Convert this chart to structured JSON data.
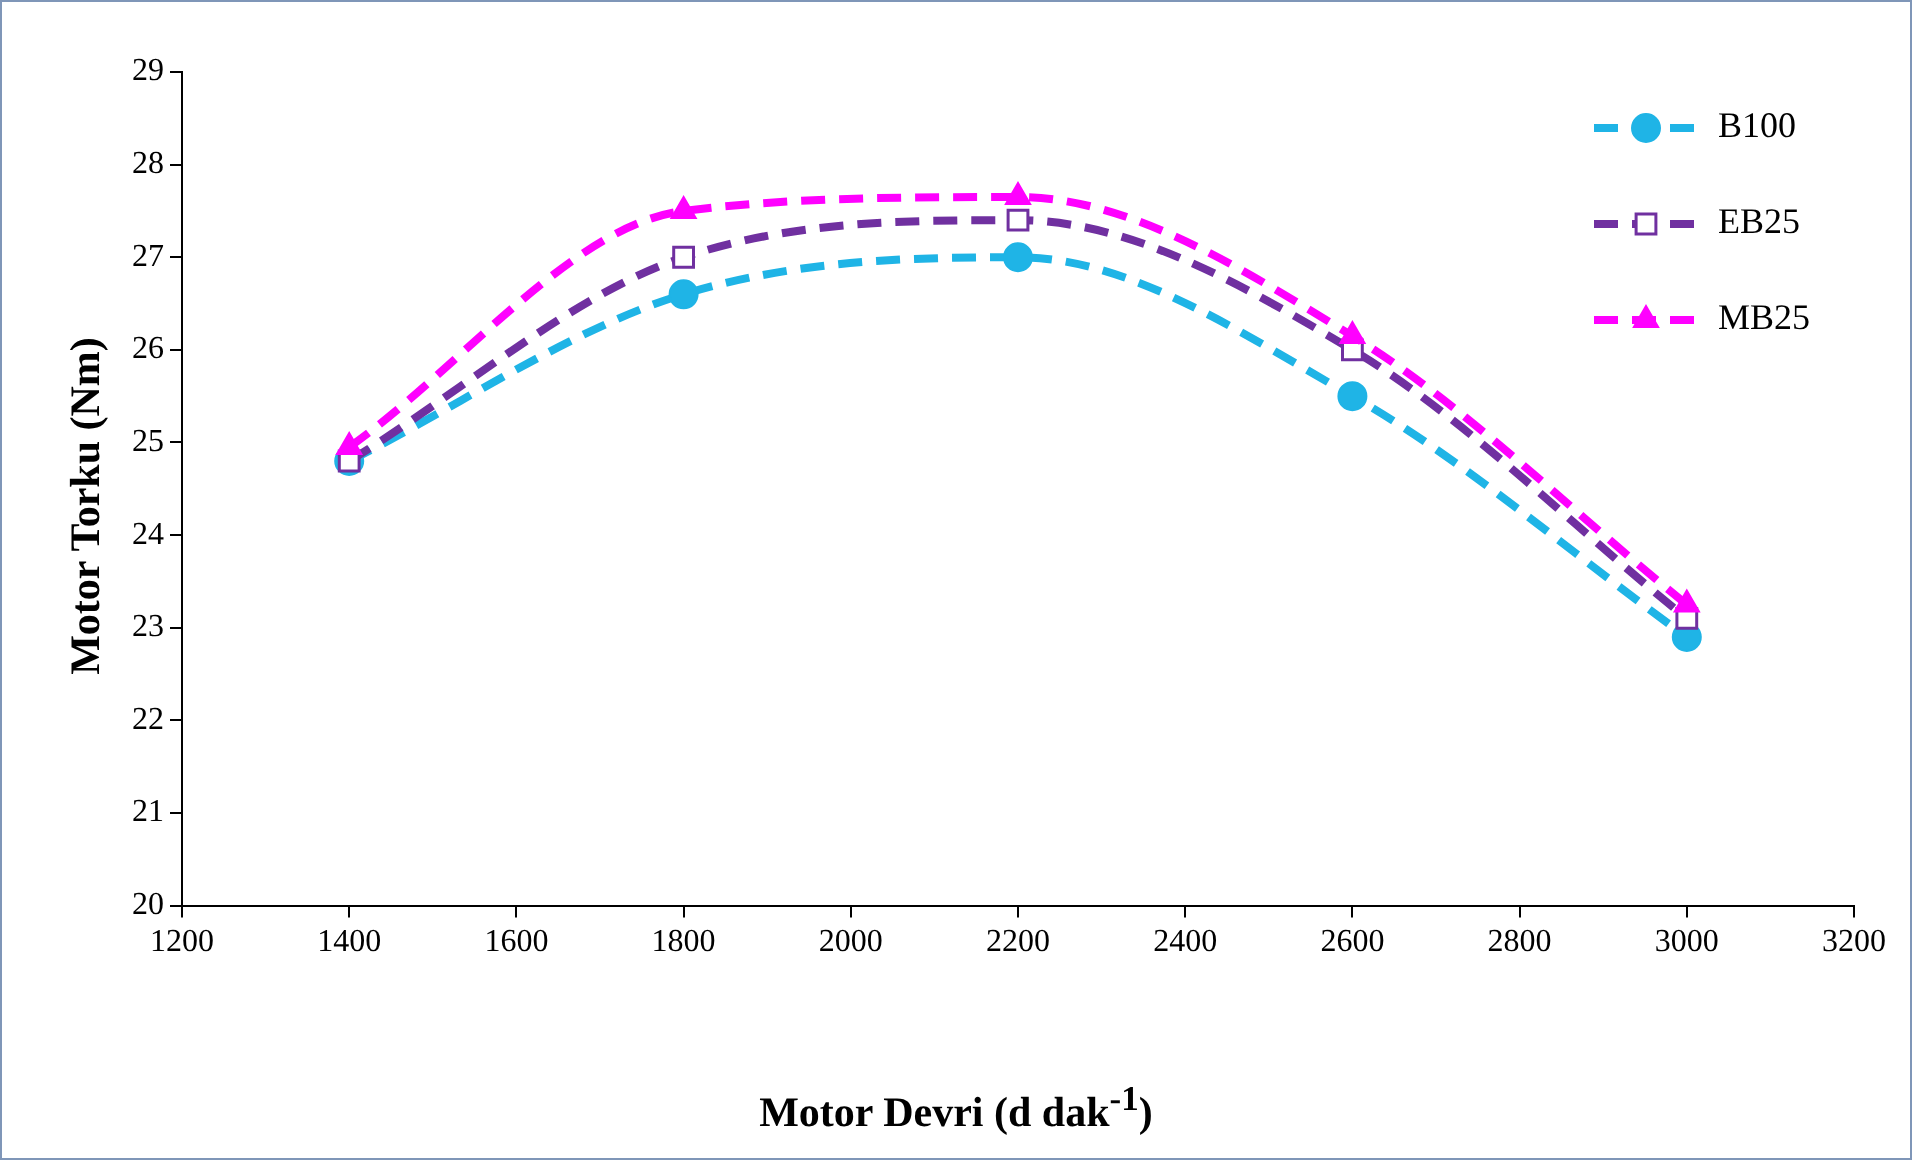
{
  "chart_data": {
    "type": "line",
    "xlabel": "Motor Devri (d dak$^{-1}$)",
    "ylabel": "Motor Torku (Nm)",
    "x": [
      1400,
      1800,
      2200,
      2600,
      3000
    ],
    "xlim": [
      1200,
      3200
    ],
    "xticks": [
      1200,
      1400,
      1600,
      1800,
      2000,
      2200,
      2400,
      2600,
      2800,
      3000,
      3200
    ],
    "ylim": [
      20,
      29
    ],
    "yticks": [
      20,
      21,
      22,
      23,
      24,
      25,
      26,
      27,
      28,
      29
    ],
    "grid": false,
    "legend": "top right",
    "series": [
      {
        "name": "B100",
        "color": "#1fb4e6",
        "values": [
          24.8,
          26.6,
          27.0,
          25.5,
          22.9
        ],
        "marker": "circle",
        "line_style": "dashed"
      },
      {
        "name": "EB25",
        "color": "#7030a0",
        "values": [
          24.8,
          27.0,
          27.4,
          26.0,
          23.1
        ],
        "marker": "square",
        "line_style": "dashed"
      },
      {
        "name": "MB25",
        "color": "#ff00ff",
        "values": [
          24.95,
          27.5,
          27.65,
          26.15,
          23.25
        ],
        "marker": "triangle",
        "line_style": "dashed"
      }
    ]
  }
}
